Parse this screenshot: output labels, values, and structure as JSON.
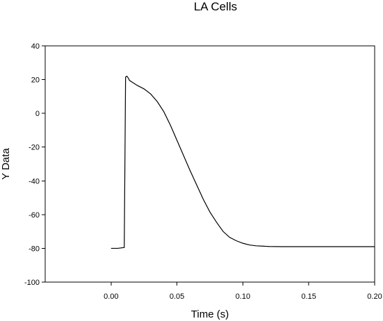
{
  "chart_data": {
    "type": "line",
    "title": "LA Cells",
    "xlabel": "Time (s)",
    "ylabel": "Y Data",
    "xlim": [
      -0.05,
      0.2
    ],
    "ylim": [
      -100,
      40
    ],
    "x_ticks": [
      0.0,
      0.05,
      0.1,
      0.15,
      0.2
    ],
    "x_tick_labels": [
      "0.00",
      "0.05",
      "0.10",
      "0.15",
      "0.20"
    ],
    "y_ticks": [
      -100,
      -80,
      -60,
      -40,
      -20,
      0,
      20,
      40
    ],
    "y_tick_labels": [
      "-100",
      "-80",
      "-60",
      "-40",
      "-20",
      "0",
      "20",
      "40"
    ],
    "grid": false,
    "legend": false,
    "series": [
      {
        "x": [
          0.0,
          0.005,
          0.01,
          0.011,
          0.012,
          0.013,
          0.014,
          0.016,
          0.02,
          0.025,
          0.03,
          0.035,
          0.04,
          0.045,
          0.05,
          0.055,
          0.06,
          0.065,
          0.07,
          0.075,
          0.08,
          0.085,
          0.09,
          0.095,
          0.1,
          0.105,
          0.11,
          0.115,
          0.12,
          0.13,
          0.14,
          0.15,
          0.16,
          0.17,
          0.18,
          0.19,
          0.2
        ],
        "y": [
          -80,
          -80,
          -79.5,
          21.5,
          22,
          21,
          19.5,
          18.5,
          16.5,
          14.5,
          11.5,
          7,
          1,
          -7,
          -16,
          -25,
          -34,
          -42.5,
          -51,
          -58.5,
          -64.5,
          -70,
          -73.5,
          -75.5,
          -77,
          -78,
          -78.5,
          -78.7,
          -78.9,
          -79,
          -79,
          -79,
          -79,
          -79,
          -79,
          -79,
          -79
        ]
      }
    ]
  }
}
